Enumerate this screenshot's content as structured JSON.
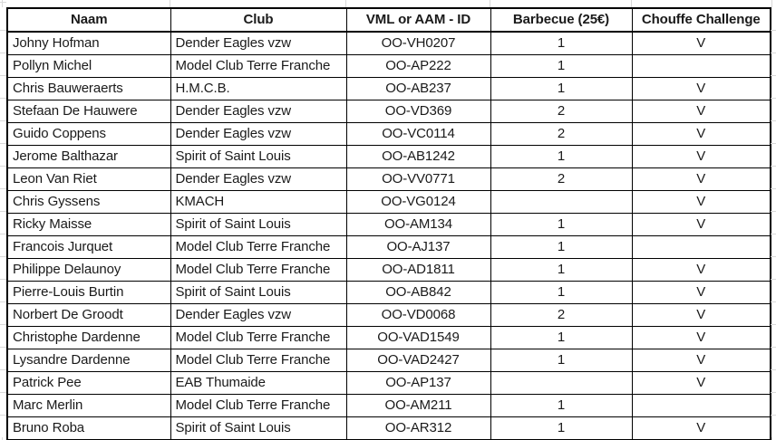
{
  "colors": {
    "table_border": "#000000",
    "text": "#1a1a1a",
    "gridline": "#d9d9d9",
    "background": "#ffffff"
  },
  "table": {
    "columns": [
      {
        "key": "naam",
        "label": "Naam",
        "align": "left"
      },
      {
        "key": "club",
        "label": "Club",
        "align": "left"
      },
      {
        "key": "id",
        "label": "VML or AAM - ID",
        "align": "center"
      },
      {
        "key": "barbecue",
        "label": "Barbecue (25€)",
        "align": "center"
      },
      {
        "key": "chouffe",
        "label": "Chouffe Challenge",
        "align": "center"
      }
    ],
    "rows": [
      {
        "naam": "Johny Hofman",
        "club": "Dender Eagles vzw",
        "id": "OO-VH0207",
        "barbecue": "1",
        "chouffe": "V"
      },
      {
        "naam": "Pollyn Michel",
        "club": "Model Club Terre Franche",
        "id": "OO-AP222",
        "barbecue": "1",
        "chouffe": ""
      },
      {
        "naam": "Chris Bauweraerts",
        "club": "H.M.C.B.",
        "id": "OO-AB237",
        "barbecue": "1",
        "chouffe": "V"
      },
      {
        "naam": "Stefaan De Hauwere",
        "club": "Dender Eagles vzw",
        "id": "OO-VD369",
        "barbecue": "2",
        "chouffe": "V"
      },
      {
        "naam": "Guido Coppens",
        "club": "Dender Eagles vzw",
        "id": "OO-VC0114",
        "barbecue": "2",
        "chouffe": "V"
      },
      {
        "naam": "Jerome Balthazar",
        "club": "Spirit of Saint Louis",
        "id": "OO-AB1242",
        "barbecue": "1",
        "chouffe": "V"
      },
      {
        "naam": "Leon Van Riet",
        "club": "Dender Eagles vzw",
        "id": "OO-VV0771",
        "barbecue": "2",
        "chouffe": "V"
      },
      {
        "naam": "Chris Gyssens",
        "club": "KMACH",
        "id": "OO-VG0124",
        "barbecue": "",
        "chouffe": "V"
      },
      {
        "naam": "Ricky Maisse",
        "club": "Spirit of Saint Louis",
        "id": "OO-AM134",
        "barbecue": "1",
        "chouffe": "V"
      },
      {
        "naam": "Francois Jurquet",
        "club": "Model Club Terre Franche",
        "id": "OO-AJ137",
        "barbecue": "1",
        "chouffe": ""
      },
      {
        "naam": "Philippe Delaunoy",
        "club": "Model Club Terre Franche",
        "id": "OO-AD1811",
        "barbecue": "1",
        "chouffe": "V"
      },
      {
        "naam": "Pierre-Louis Burtin",
        "club": "Spirit of Saint Louis",
        "id": "OO-AB842",
        "barbecue": "1",
        "chouffe": "V"
      },
      {
        "naam": "Norbert De Groodt",
        "club": "Dender Eagles vzw",
        "id": "OO-VD0068",
        "barbecue": "2",
        "chouffe": "V"
      },
      {
        "naam": "Christophe Dardenne",
        "club": "Model Club Terre Franche",
        "id": "OO-VAD1549",
        "barbecue": "1",
        "chouffe": "V"
      },
      {
        "naam": "Lysandre Dardenne",
        "club": "Model Club Terre Franche",
        "id": "OO-VAD2427",
        "barbecue": "1",
        "chouffe": "V"
      },
      {
        "naam": "Patrick Pee",
        "club": "EAB Thumaide",
        "id": "OO-AP137",
        "barbecue": "",
        "chouffe": "V"
      },
      {
        "naam": "Marc Merlin",
        "club": "Model Club Terre Franche",
        "id": "OO-AM211",
        "barbecue": "1",
        "chouffe": ""
      },
      {
        "naam": "Bruno Roba",
        "club": "Spirit of Saint Louis",
        "id": "OO-AR312",
        "barbecue": "1",
        "chouffe": "V"
      }
    ]
  }
}
